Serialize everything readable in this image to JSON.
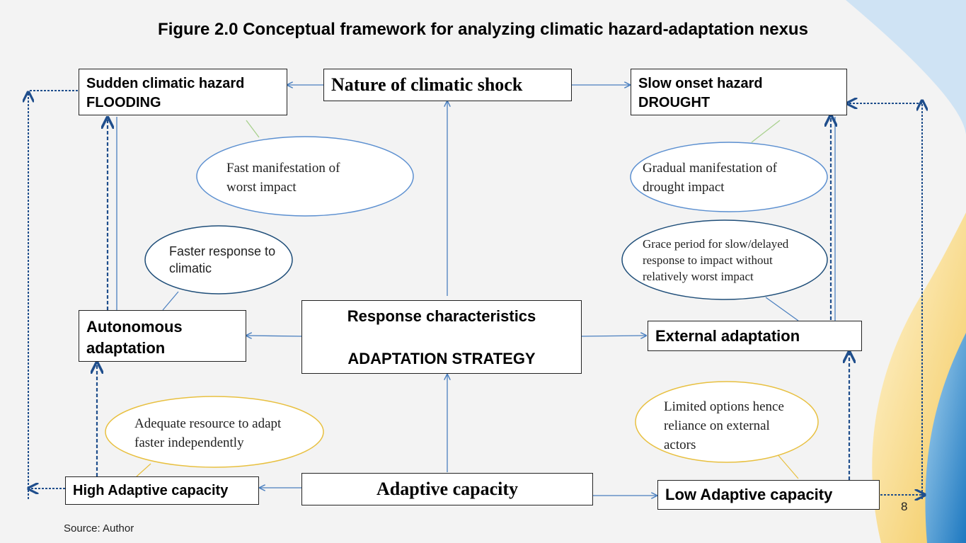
{
  "title": "Figure 2.0 Conceptual framework for analyzing climatic hazard-adaptation nexus",
  "boxes": {
    "sudden_hazard_line1": "Sudden climatic hazard",
    "sudden_hazard_line2": "FLOODING",
    "nature_shock": "Nature of climatic shock",
    "slow_hazard_line1": "Slow onset hazard",
    "slow_hazard_line2": "DROUGHT",
    "autonomous_line1": "Autonomous",
    "autonomous_line2": "adaptation",
    "response_line1": "Response characteristics",
    "response_line2": "ADAPTATION STRATEGY",
    "external": "External adaptation",
    "high_capacity": "High Adaptive capacity",
    "adaptive_capacity": "Adaptive capacity",
    "low_capacity": "Low Adaptive capacity"
  },
  "ovals": {
    "fast_line1": "Fast manifestation of",
    "fast_line2": "worst impact",
    "gradual_line1": "Gradual manifestation of",
    "gradual_line2": "drought impact",
    "faster_line1": "Faster response to",
    "faster_line2": "climatic",
    "grace_line1": "Grace period for slow/delayed",
    "grace_line2": "response to impact without",
    "grace_line3": "relatively worst impact",
    "adequate_line1": "Adequate resource to adapt",
    "adequate_line2": "faster independently",
    "limited_line1": "Limited options hence",
    "limited_line2": "reliance on external",
    "limited_line3": "actors"
  },
  "footer": {
    "source": "Source: Author",
    "page_number": "8"
  },
  "colors": {
    "arrow": "#4a7fbf",
    "dashed_arrow": "#1f4e8c",
    "blue_oval": "#5b8fd0",
    "dark_oval": "#1f4e79",
    "yellow_oval": "#e8c040",
    "connector_green": "#a9d18e"
  }
}
